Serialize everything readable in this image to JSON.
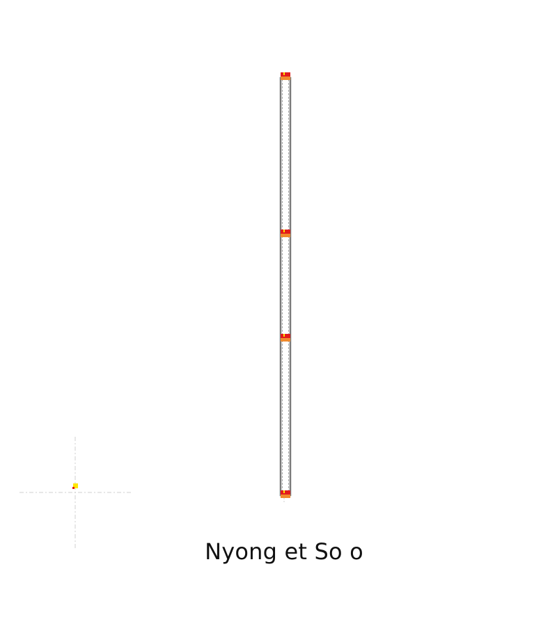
{
  "map": {
    "title": "Nyong et So o",
    "colors": {
      "route_line": "#777777",
      "stop_marker_top": "#e21b1b",
      "stop_marker_bottom": "#f08a2c",
      "locator_point": "#ffe600",
      "crosshair": "#c8c8c8"
    },
    "icons": {
      "route": "route-line",
      "stop": "stop-marker",
      "locator": "locator-crosshair"
    }
  }
}
